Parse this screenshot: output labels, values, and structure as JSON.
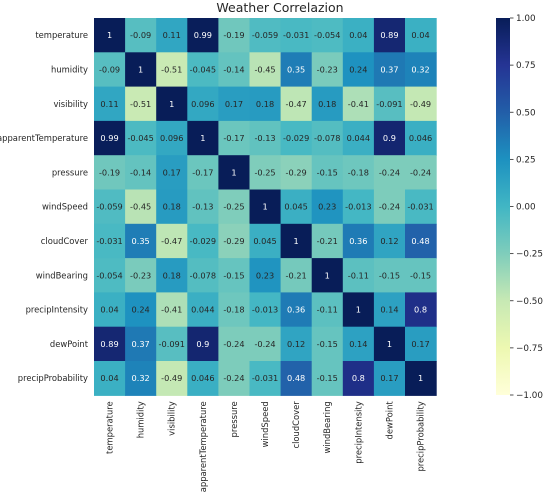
{
  "chart_data": {
    "type": "heatmap",
    "title": "Weather Correlazion",
    "xlabel": "",
    "ylabel": "",
    "row_labels": [
      "temperature",
      "humidity",
      "visibility",
      "apparentTemperature",
      "pressure",
      "windSpeed",
      "cloudCover",
      "windBearing",
      "precipIntensity",
      "dewPoint",
      "precipProbability"
    ],
    "col_labels": [
      "temperature",
      "humidity",
      "visibility",
      "apparentTemperature",
      "pressure",
      "windSpeed",
      "cloudCover",
      "windBearing",
      "precipIntensity",
      "dewPoint",
      "precipProbability"
    ],
    "values": [
      [
        1,
        -0.09,
        0.11,
        0.99,
        -0.19,
        -0.059,
        -0.031,
        -0.054,
        0.04,
        0.89,
        0.04
      ],
      [
        -0.09,
        1,
        -0.51,
        -0.045,
        -0.14,
        -0.45,
        0.35,
        -0.23,
        0.24,
        0.37,
        0.32
      ],
      [
        0.11,
        -0.51,
        1,
        0.096,
        0.17,
        0.18,
        -0.47,
        0.18,
        -0.41,
        -0.091,
        -0.49
      ],
      [
        0.99,
        -0.045,
        0.096,
        1,
        -0.17,
        -0.13,
        -0.029,
        -0.078,
        0.044,
        0.9,
        0.046
      ],
      [
        -0.19,
        -0.14,
        0.17,
        -0.17,
        1,
        -0.25,
        -0.29,
        -0.15,
        -0.18,
        -0.24,
        -0.24
      ],
      [
        -0.059,
        -0.45,
        0.18,
        -0.13,
        -0.25,
        1,
        0.045,
        0.23,
        -0.013,
        -0.24,
        -0.031
      ],
      [
        -0.031,
        0.35,
        -0.47,
        -0.029,
        -0.29,
        0.045,
        1,
        -0.21,
        0.36,
        0.12,
        0.48
      ],
      [
        -0.054,
        -0.23,
        0.18,
        -0.078,
        -0.15,
        0.23,
        -0.21,
        1,
        -0.11,
        -0.15,
        -0.15
      ],
      [
        0.04,
        0.24,
        -0.41,
        0.044,
        -0.18,
        -0.013,
        0.36,
        -0.11,
        1,
        0.14,
        0.8
      ],
      [
        0.89,
        0.37,
        -0.091,
        0.9,
        -0.24,
        -0.24,
        0.12,
        -0.15,
        0.14,
        1,
        0.17
      ],
      [
        0.04,
        0.32,
        -0.49,
        0.046,
        -0.24,
        -0.031,
        0.48,
        -0.15,
        0.8,
        0.17,
        1
      ]
    ],
    "annotations_shown": true,
    "colormap": "YlGnBu",
    "colormap_stops": [
      "#ffffd9",
      "#edf8b1",
      "#c7e9b4",
      "#7fcdbb",
      "#41b6c4",
      "#1d91c0",
      "#225ea8",
      "#253494",
      "#081d58"
    ],
    "vmin": -1,
    "vmax": 1,
    "colorbar_ticks": [
      "1.00",
      "0.75",
      "0.50",
      "0.25",
      "0.00",
      "−0.25",
      "−0.50",
      "−0.75",
      "−1.00"
    ],
    "colorbar_position": "right",
    "grid": false,
    "legend": "none"
  }
}
